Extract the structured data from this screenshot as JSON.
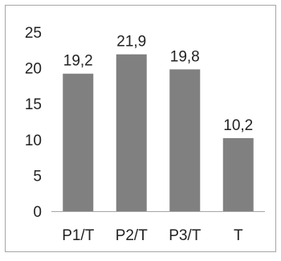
{
  "chart_data": {
    "type": "bar",
    "categories": [
      "P1/T",
      "P2/T",
      "P3/T",
      "T"
    ],
    "values": [
      19.2,
      21.9,
      19.8,
      10.2
    ],
    "data_labels": [
      "19,2",
      "21,9",
      "19,8",
      "10,2"
    ],
    "title": "",
    "xlabel": "",
    "ylabel": "",
    "ylim": [
      0,
      25
    ],
    "yticks": [
      0,
      5,
      10,
      15,
      20,
      25
    ],
    "grid": false,
    "legend": "none",
    "colors": {
      "bar": "#808080",
      "axis": "#a6a6a6",
      "text": "#222222",
      "frame": "#a6a6a6"
    }
  }
}
